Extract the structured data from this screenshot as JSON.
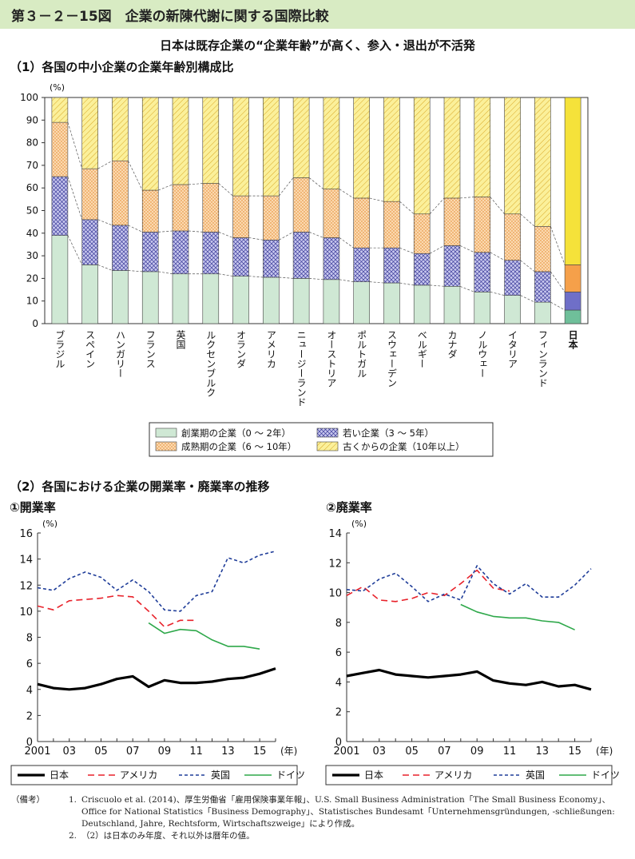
{
  "figure_title": "第３－２－15図　企業の新陳代謝に関する国際比較",
  "subtitle": "日本は既存企業の“企業年齢”が高く、参入・退出が不活発",
  "section1_title": "（1）各国の中小企業の企業年齢別構成比",
  "section2_title": "（2）各国における企業の開業率・廃業率の推移",
  "colors": {
    "header_bg": "#d8ebc3",
    "startup": "#cfe8d4",
    "young": "#c8c8ee",
    "mature": "#fbd9b0",
    "old": "#fbf09a",
    "japan": "#000000",
    "usa": "#e8212a",
    "uk": "#1f3d99",
    "germany": "#2ea84a"
  },
  "chart_data": [
    {
      "type": "bar",
      "stacked": true,
      "ylabel": "(%)",
      "ylim": [
        0,
        100
      ],
      "yticks": [
        0,
        10,
        20,
        30,
        40,
        50,
        60,
        70,
        80,
        90,
        100
      ],
      "categories": [
        "ブラジル",
        "スペイン",
        "ハンガリー",
        "フランス",
        "英国",
        "ルクセンブルク",
        "オランダ",
        "アメリカ",
        "ニュージーランド",
        "オーストリア",
        "ポルトガル",
        "スウェーデン",
        "ベルギー",
        "カナダ",
        "ノルウェー",
        "イタリア",
        "フィンランド",
        "日本"
      ],
      "highlight_category": "日本",
      "series": [
        {
          "name": "創業期の企業（0 ～ 2年）",
          "values": [
            39,
            26,
            23.5,
            23,
            22,
            22,
            21,
            20.5,
            20,
            19.5,
            18.5,
            18,
            17,
            16.5,
            14,
            12.5,
            9.5,
            6
          ]
        },
        {
          "name": "若い企業（3 ～ 5年）",
          "values": [
            26,
            20,
            20,
            17.5,
            19,
            18.5,
            17,
            16.5,
            20.5,
            18.5,
            15,
            15.5,
            14,
            18,
            17.5,
            15.5,
            13.5,
            8
          ]
        },
        {
          "name": "成熟期の企業（6 ～ 10年）",
          "values": [
            24,
            22.5,
            28.5,
            18.5,
            20.5,
            21.5,
            18.5,
            19.5,
            24,
            21.5,
            22,
            20.5,
            17.5,
            21,
            24.5,
            20.5,
            20,
            12
          ]
        },
        {
          "name": "古くからの企業（10年以上）",
          "values": [
            11,
            31.5,
            28,
            41,
            38.5,
            38,
            43.5,
            43.5,
            35.5,
            40.5,
            44.5,
            46,
            51.5,
            44.5,
            44,
            51.5,
            57,
            74
          ]
        }
      ],
      "legend": [
        "創業期の企業（0 ～ 2年）",
        "若い企業（3 ～ 5年）",
        "成熟期の企業（6 ～ 10年）",
        "古くからの企業（10年以上）"
      ]
    },
    {
      "type": "line",
      "title": "①開業率",
      "ylabel": "(%)",
      "xlabel": "(年)",
      "ylim": [
        0,
        16
      ],
      "yticks": [
        0,
        2,
        4,
        6,
        8,
        10,
        12,
        14,
        16
      ],
      "xlim": [
        2001,
        2016
      ],
      "xtick_values": [
        2001,
        2003,
        2005,
        2007,
        2009,
        2011,
        2013,
        2015
      ],
      "xtick_labels": [
        "2001",
        "03",
        "05",
        "07",
        "09",
        "11",
        "13",
        "15"
      ],
      "series": [
        {
          "name": "日本",
          "x": [
            2001,
            2002,
            2003,
            2004,
            2005,
            2006,
            2007,
            2008,
            2009,
            2010,
            2011,
            2012,
            2013,
            2014,
            2015,
            2016
          ],
          "values": [
            4.4,
            4.1,
            4.0,
            4.1,
            4.4,
            4.8,
            5.0,
            4.2,
            4.7,
            4.5,
            4.5,
            4.6,
            4.8,
            4.9,
            5.2,
            5.6
          ]
        },
        {
          "name": "アメリカ",
          "x": [
            2001,
            2002,
            2003,
            2004,
            2005,
            2006,
            2007,
            2008,
            2009,
            2010,
            2011
          ],
          "values": [
            10.4,
            10.1,
            10.8,
            10.9,
            11.0,
            11.2,
            11.1,
            10.0,
            8.8,
            9.3,
            9.3
          ]
        },
        {
          "name": "英国",
          "x": [
            2001,
            2002,
            2003,
            2004,
            2005,
            2006,
            2007,
            2008,
            2009,
            2010,
            2011,
            2012,
            2013,
            2014,
            2015,
            2016
          ],
          "values": [
            11.8,
            11.6,
            12.5,
            13.0,
            12.6,
            11.6,
            12.4,
            11.5,
            10.1,
            10.0,
            11.2,
            11.5,
            14.1,
            13.7,
            14.3,
            14.6
          ]
        },
        {
          "name": "ドイツ",
          "x": [
            2008,
            2009,
            2010,
            2011,
            2012,
            2013,
            2014,
            2015
          ],
          "values": [
            9.1,
            8.3,
            8.6,
            8.5,
            7.8,
            7.3,
            7.3,
            7.1
          ]
        }
      ],
      "legend": [
        "日本",
        "アメリカ",
        "英国",
        "ドイツ"
      ]
    },
    {
      "type": "line",
      "title": "②廃業率",
      "ylabel": "(%)",
      "xlabel": "(年)",
      "ylim": [
        0,
        14
      ],
      "yticks": [
        0,
        2,
        4,
        6,
        8,
        10,
        12,
        14
      ],
      "xlim": [
        2001,
        2016
      ],
      "xtick_values": [
        2001,
        2003,
        2005,
        2007,
        2009,
        2011,
        2013,
        2015
      ],
      "xtick_labels": [
        "2001",
        "03",
        "05",
        "07",
        "09",
        "11",
        "13",
        "15"
      ],
      "series": [
        {
          "name": "日本",
          "x": [
            2001,
            2002,
            2003,
            2004,
            2005,
            2006,
            2007,
            2008,
            2009,
            2010,
            2011,
            2012,
            2013,
            2014,
            2015,
            2016
          ],
          "values": [
            4.4,
            4.6,
            4.8,
            4.5,
            4.4,
            4.3,
            4.4,
            4.5,
            4.7,
            4.1,
            3.9,
            3.8,
            4.0,
            3.7,
            3.8,
            3.5
          ]
        },
        {
          "name": "アメリカ",
          "x": [
            2001,
            2002,
            2003,
            2004,
            2005,
            2006,
            2007,
            2008,
            2009,
            2010,
            2011
          ],
          "values": [
            9.8,
            10.4,
            9.5,
            9.4,
            9.6,
            10.0,
            9.8,
            10.6,
            11.5,
            10.3,
            10.1
          ]
        },
        {
          "name": "英国",
          "x": [
            2001,
            2002,
            2003,
            2004,
            2005,
            2006,
            2007,
            2008,
            2009,
            2010,
            2011,
            2012,
            2013,
            2014,
            2015,
            2016
          ],
          "values": [
            10.2,
            10.1,
            10.9,
            11.3,
            10.4,
            9.4,
            9.9,
            9.5,
            11.8,
            10.6,
            9.9,
            10.6,
            9.7,
            9.7,
            10.5,
            11.6
          ]
        },
        {
          "name": "ドイツ",
          "x": [
            2008,
            2009,
            2010,
            2011,
            2012,
            2013,
            2014,
            2015
          ],
          "values": [
            9.2,
            8.7,
            8.4,
            8.3,
            8.3,
            8.1,
            8.0,
            7.5
          ]
        }
      ],
      "legend": [
        "日本",
        "アメリカ",
        "英国",
        "ドイツ"
      ]
    }
  ],
  "notes": [
    {
      "head": "（備考）",
      "num": "1.",
      "text": "Criscuolo et al. (2014)、厚生労働省「雇用保険事業年報」、U.S. Small Business Administration「The Small Business Economy」、Office for National Statistics「Business Demography」、Statistisches Bundesamt「Unternehmensgründungen, -schließungen: Deutschland, Jahre, Rechtsform, Wirtschaftszweige」により作成。"
    },
    {
      "head": "",
      "num": "2.",
      "text": "（2）は日本のみ年度、それ以外は暦年の値。"
    }
  ]
}
